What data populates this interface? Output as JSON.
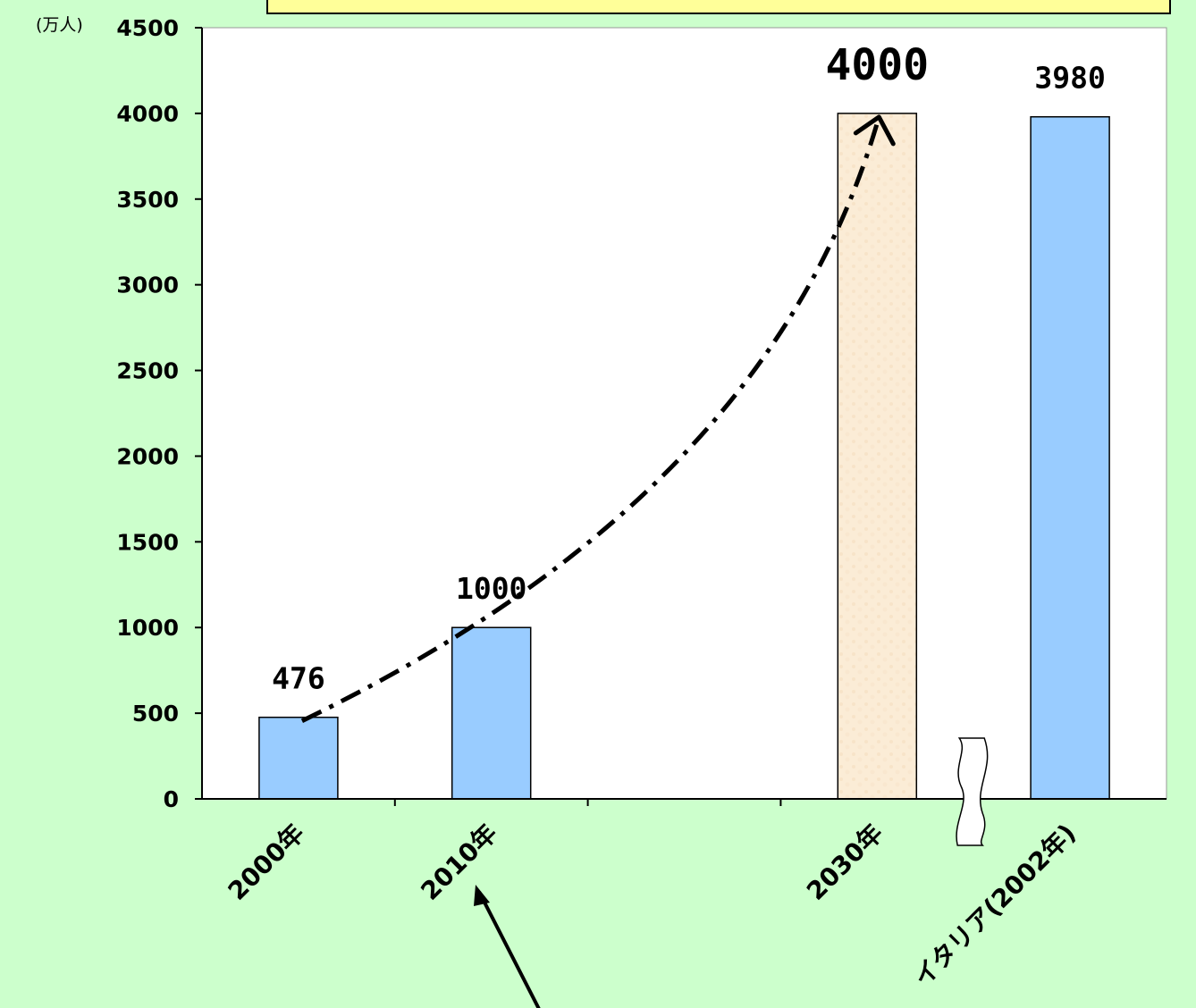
{
  "chart_data": {
    "type": "bar",
    "unit_label": "(万人)",
    "categories": [
      "2000年",
      "2010年",
      "",
      "2030年",
      "イタリア(2002年)"
    ],
    "values": [
      476,
      1000,
      null,
      4000,
      3980
    ],
    "data_labels": [
      "476",
      "1000",
      "",
      "4000",
      "3980"
    ],
    "ylim": [
      0,
      4500
    ],
    "yticks": [
      0,
      500,
      1000,
      1500,
      2000,
      2500,
      3000,
      3500,
      4000,
      4500
    ],
    "bar_colors": [
      "#99ccff",
      "#99ccff",
      "",
      "#fbecd6",
      "#99ccff"
    ],
    "grid": false,
    "trend_arrow": "dash-dot curve from 2000年 to 2030年",
    "axis_break": "between 2030年 and イタリア(2002年)"
  }
}
